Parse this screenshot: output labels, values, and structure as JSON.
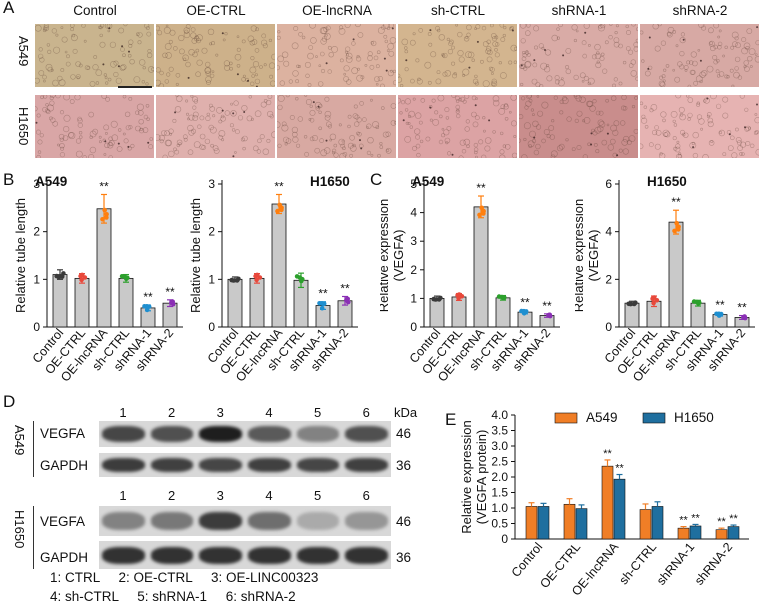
{
  "panel_letters": {
    "A": "A",
    "B": "B",
    "C": "C",
    "D": "D",
    "E": "E"
  },
  "panelA": {
    "columns": [
      "Control",
      "OE-CTRL",
      "OE-lncRNA",
      "sh-CTRL",
      "shRNA-1",
      "shRNA-2"
    ],
    "rows": [
      "A549",
      "H1650"
    ],
    "tile_colors": {
      "A549": [
        "#c9b48e",
        "#cdb18a",
        "#dcb2a0",
        "#d3b58f",
        "#d9aba6",
        "#d7a9a4"
      ],
      "H1650": [
        "#d9a6a6",
        "#dfb0ad",
        "#d8a9a2",
        "#dca3a4",
        "#c98d8c",
        "#e6b3b2"
      ]
    }
  },
  "categories": [
    "Control",
    "OE-CTRL",
    "OE-lncRNA",
    "sh-CTRL",
    "shRNA-1",
    "shRNA-2"
  ],
  "colors": {
    "control": "#3a3a3a",
    "oe_ctrl": "#e8483b",
    "oe_lnc": "#ff7f0e",
    "sh_ctrl": "#2ca02c",
    "shrna1": "#1f8fd0",
    "shrna2": "#8b2fb5",
    "bar_fill": "#c9c9c9",
    "a549": "#f07e26",
    "h1650": "#1f6f9f"
  },
  "chart_data": [
    {
      "id": "B-A549",
      "type": "bar",
      "title": "A549",
      "ylabel": "Relative tube length",
      "ylim": [
        0,
        3
      ],
      "yticks": [
        0,
        1,
        2,
        3
      ],
      "categories": [
        "Control",
        "OE-CTRL",
        "OE-lncRNA",
        "sh-CTRL",
        "shRNA-1",
        "shRNA-2"
      ],
      "values": [
        1.1,
        1.02,
        2.48,
        1.02,
        0.4,
        0.5
      ],
      "err": [
        0.1,
        0.1,
        0.3,
        0.08,
        0.06,
        0.07
      ],
      "sig": [
        "",
        "",
        "**",
        "",
        "**",
        "**"
      ]
    },
    {
      "id": "B-H1650",
      "type": "bar",
      "title": "H1650",
      "ylabel": "Relative tube length",
      "ylim": [
        0,
        3
      ],
      "yticks": [
        0,
        1,
        2,
        3
      ],
      "categories": [
        "Control",
        "OE-CTRL",
        "OE-lncRNA",
        "sh-CTRL",
        "shRNA-1",
        "shRNA-2"
      ],
      "values": [
        1.0,
        1.02,
        2.58,
        0.98,
        0.45,
        0.55
      ],
      "err": [
        0.05,
        0.1,
        0.2,
        0.15,
        0.08,
        0.09
      ],
      "sig": [
        "",
        "",
        "**",
        "",
        "**",
        "**"
      ]
    },
    {
      "id": "C-A549",
      "type": "bar",
      "title": "A549",
      "ylabel": "Relative expression (VEGFA)",
      "ylim": [
        0,
        5
      ],
      "yticks": [
        0,
        1,
        2,
        3,
        4,
        5
      ],
      "categories": [
        "Control",
        "OE-CTRL",
        "OE-lncRNA",
        "sh-CTRL",
        "shRNA-1",
        "shRNA-2"
      ],
      "values": [
        1.0,
        1.05,
        4.2,
        1.02,
        0.52,
        0.4
      ],
      "err": [
        0.08,
        0.12,
        0.38,
        0.08,
        0.06,
        0.06
      ],
      "sig": [
        "",
        "",
        "**",
        "",
        "**",
        "**"
      ]
    },
    {
      "id": "C-H1650",
      "type": "bar",
      "title": "H1650",
      "ylabel": "Relative expression (VEGFA)",
      "ylim": [
        0,
        6
      ],
      "yticks": [
        0,
        2,
        4,
        6
      ],
      "categories": [
        "Control",
        "OE-CTRL",
        "OE-lncRNA",
        "sh-CTRL",
        "shRNA-1",
        "shRNA-2"
      ],
      "values": [
        1.0,
        1.08,
        4.4,
        1.0,
        0.52,
        0.4
      ],
      "err": [
        0.08,
        0.22,
        0.5,
        0.12,
        0.06,
        0.08
      ],
      "sig": [
        "",
        "",
        "**",
        "",
        "**",
        "**"
      ]
    },
    {
      "id": "E",
      "type": "bar",
      "title": "",
      "ylabel": "Relative expression (VEGFA protein)",
      "ylim": [
        0,
        4
      ],
      "yticks": [
        0,
        0.5,
        1.0,
        1.5,
        2.0,
        2.5,
        3.0,
        3.5,
        4.0
      ],
      "categories": [
        "Control",
        "OE-CTRL",
        "OE-lncRNA",
        "sh-CTRL",
        "shRNA-1",
        "shRNA-2"
      ],
      "series": [
        {
          "name": "A549",
          "values": [
            1.05,
            1.12,
            2.35,
            0.95,
            0.35,
            0.3
          ],
          "err": [
            0.12,
            0.18,
            0.2,
            0.18,
            0.05,
            0.05
          ],
          "sig": [
            "",
            "",
            "**",
            "",
            "**",
            "**"
          ]
        },
        {
          "name": "H1650",
          "values": [
            1.05,
            0.98,
            1.93,
            1.05,
            0.42,
            0.4
          ],
          "err": [
            0.1,
            0.12,
            0.15,
            0.15,
            0.05,
            0.05
          ],
          "sig": [
            "",
            "",
            "**",
            "",
            "**",
            "**"
          ]
        }
      ],
      "legend": "top"
    }
  ],
  "panelD": {
    "kda_label": "kDa",
    "lane_numbers": [
      "1",
      "2",
      "3",
      "4",
      "5",
      "6"
    ],
    "cell_lines": [
      "A549",
      "H1650"
    ],
    "bands": [
      {
        "name": "VEGFA",
        "kda": "46"
      },
      {
        "name": "GAPDH",
        "kda": "36"
      }
    ],
    "intensity": {
      "A549": {
        "VEGFA": [
          0.75,
          0.7,
          0.95,
          0.65,
          0.45,
          0.7
        ],
        "GAPDH": [
          0.8,
          0.78,
          0.75,
          0.78,
          0.75,
          0.78
        ]
      },
      "H1650": {
        "VEGFA": [
          0.45,
          0.5,
          0.8,
          0.55,
          0.25,
          0.35
        ],
        "GAPDH": [
          0.85,
          0.85,
          0.85,
          0.85,
          0.85,
          0.85
        ]
      }
    },
    "legend_lines": [
      "1: CTRL     2: OE-CTRL     3: OE-LINC00323",
      "4: sh-CTRL     5: shRNA-1     6: shRNA-2"
    ]
  }
}
